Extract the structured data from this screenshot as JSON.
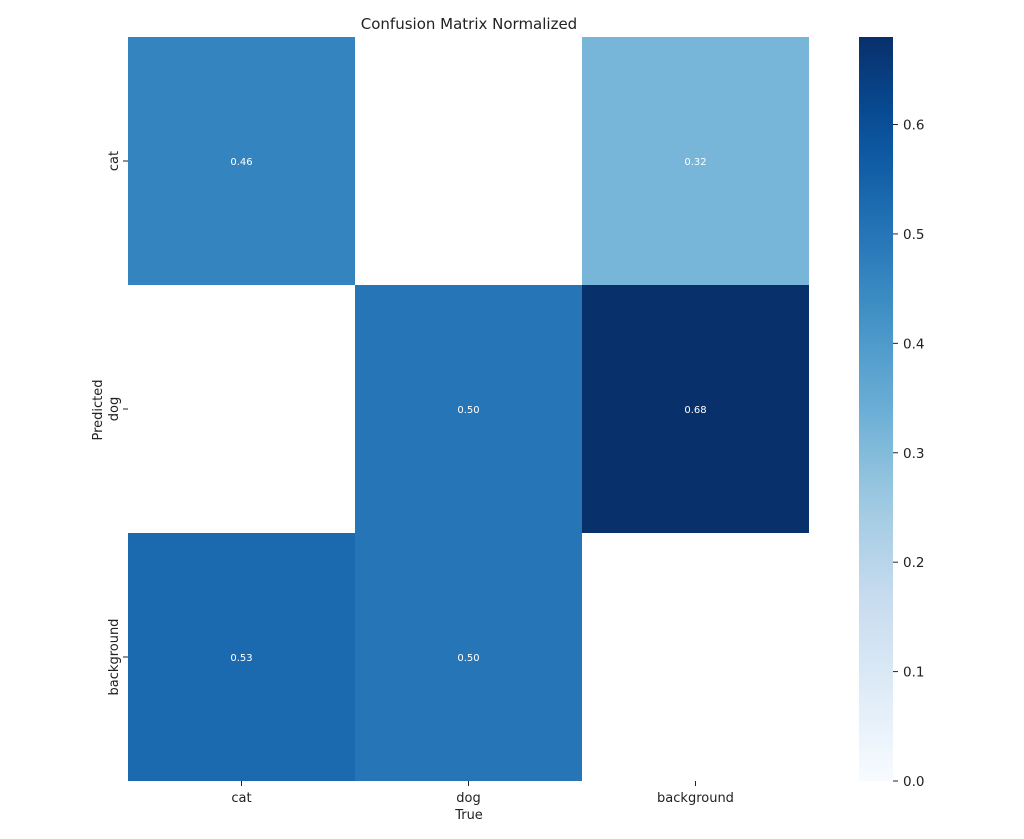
{
  "chart_data": {
    "type": "heatmap",
    "title": "Confusion Matrix Normalized",
    "xlabel": "True",
    "ylabel": "Predicted",
    "x_categories": [
      "cat",
      "dog",
      "background"
    ],
    "y_categories": [
      "cat",
      "dog",
      "background"
    ],
    "values": [
      [
        0.46,
        null,
        0.32
      ],
      [
        null,
        0.5,
        0.68
      ],
      [
        0.53,
        0.5,
        null
      ]
    ],
    "value_labels": [
      [
        "0.46",
        "",
        "0.32"
      ],
      [
        "",
        "0.50",
        "0.68"
      ],
      [
        "0.53",
        "0.50",
        ""
      ]
    ],
    "colorbar": {
      "colormap": "Blues",
      "range": [
        0,
        0.68
      ],
      "ticks": [
        0.0,
        0.1,
        0.2,
        0.3,
        0.4,
        0.5,
        0.6
      ],
      "tick_labels": [
        "0.0",
        "0.1",
        "0.2",
        "0.3",
        "0.4",
        "0.5",
        "0.6"
      ]
    },
    "grid": false
  }
}
